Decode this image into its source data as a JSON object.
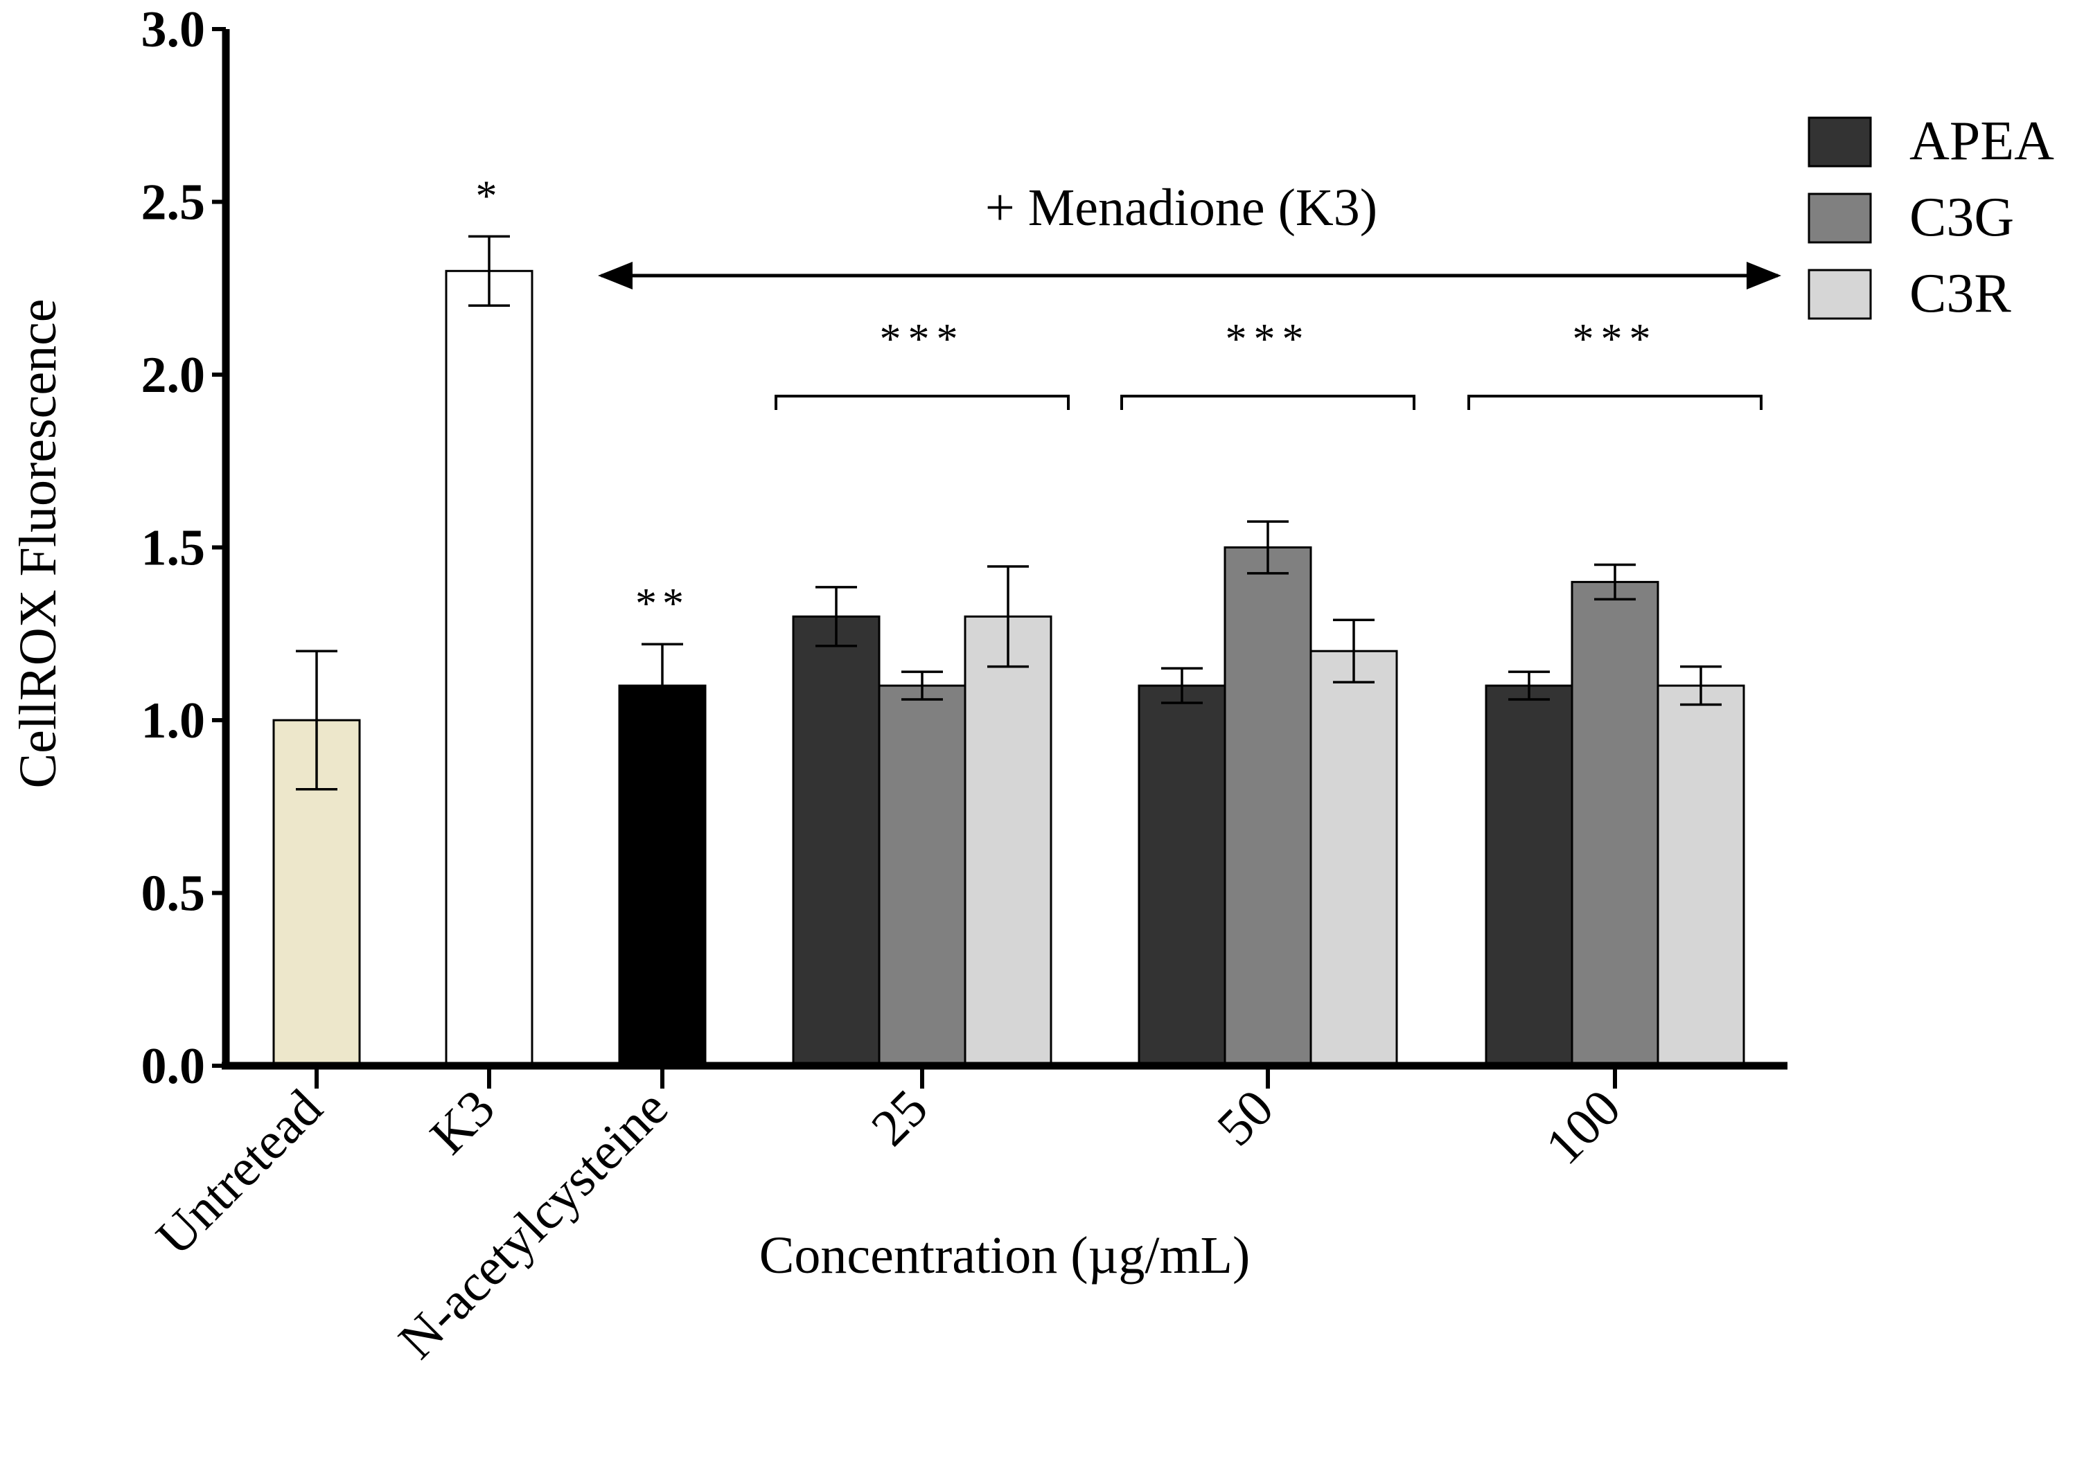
{
  "chart_data": {
    "type": "bar",
    "ylabel": "CellROX Fluorescence",
    "xlabel": "Concentration (µg/mL)",
    "ylim": [
      0,
      3.0
    ],
    "yticks": [
      "0.0",
      "0.5",
      "1.0",
      "1.5",
      "2.0",
      "2.5",
      "3.0"
    ],
    "controls": [
      {
        "label": "Untretead",
        "value": 1.0,
        "error": 0.2,
        "color": "#ede7cb",
        "annotation": ""
      },
      {
        "label": "K3",
        "value": 2.3,
        "error": 0.1,
        "color": "#ffffff",
        "annotation": "*"
      },
      {
        "label": "N-acetylcysteine",
        "value": 1.1,
        "error": 0.12,
        "color": "#000000",
        "annotation": "**"
      }
    ],
    "categories": [
      "25",
      "50",
      "100"
    ],
    "series": [
      {
        "name": "APEA",
        "color": "#333333",
        "values": [
          1.3,
          1.1,
          1.1
        ],
        "errors": [
          0.085,
          0.05,
          0.04
        ]
      },
      {
        "name": "C3G",
        "color": "#808080",
        "values": [
          1.1,
          1.5,
          1.4
        ],
        "errors": [
          0.04,
          0.075,
          0.05
        ]
      },
      {
        "name": "C3R",
        "color": "#d6d6d6",
        "values": [
          1.3,
          1.2,
          1.1
        ],
        "errors": [
          0.145,
          0.09,
          0.055
        ]
      }
    ],
    "group_annotations": [
      "***",
      "***",
      "***"
    ],
    "arrow_label": "+ Menadione (K3)",
    "legend_position": "top-right"
  }
}
